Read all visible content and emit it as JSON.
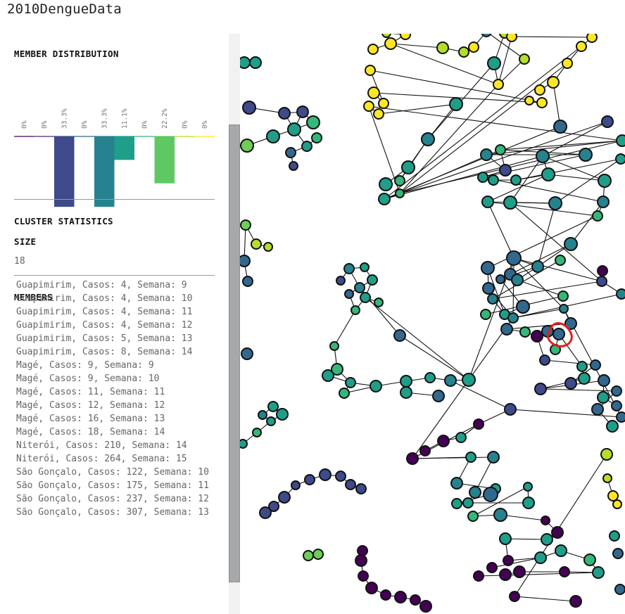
{
  "app": {
    "title": "2010DengueData"
  },
  "sidebar": {
    "distribution": {
      "title": "MEMBER DISTRIBUTION",
      "labels": [
        "0%",
        "0%",
        "33.3%",
        "0%",
        "33.3%",
        "11.1%",
        "0%",
        "22.2%",
        "0%",
        "0%"
      ],
      "values": [
        0,
        0,
        33.3,
        0,
        33.3,
        11.1,
        0,
        22.2,
        0,
        0
      ],
      "colors": [
        "#440154",
        "#482878",
        "#3e4a89",
        "#31688e",
        "#26828e",
        "#1f9e89",
        "#35b779",
        "#5ec962",
        "#b5de2b",
        "#fde725"
      ]
    },
    "stats": {
      "title": "CLUSTER STATISTICS",
      "size_label": "SIZE",
      "size_value": "18"
    },
    "members": {
      "title": "MEMBERS",
      "items": [
        "Guapimirim, Casos: 4, Semana: 9",
        "Guapimirim, Casos: 4, Semana: 10",
        "Guapimirim, Casos: 4, Semana: 11",
        "Guapimirim, Casos: 4, Semana: 12",
        "Guapimirim, Casos: 5, Semana: 13",
        "Guapimirim, Casos: 8, Semana: 14",
        "Magé, Casos: 9, Semana: 9",
        "Magé, Casos: 9, Semana: 10",
        "Magé, Casos: 11, Semana: 11",
        "Magé, Casos: 12, Semana: 12",
        "Magé, Casos: 16, Semana: 13",
        "Magé, Casos: 18, Semana: 14",
        "Niterói, Casos: 210, Semana: 14",
        "Niterói, Casos: 264, Semana: 15",
        "São Gonçalo, Casos: 122, Semana: 10",
        "São Gonçalo, Casos: 175, Semana: 11",
        "São Gonçalo, Casos: 237, Semana: 12",
        "São Gonçalo, Casos: 307, Semana: 13"
      ]
    }
  },
  "graph": {
    "selection_color": "#e0201b",
    "palette": {
      "a": "#440154",
      "b": "#3e4a89",
      "c": "#31688e",
      "d": "#26828e",
      "e": "#1f9e89",
      "f": "#35b779",
      "g": "#6ece58",
      "h": "#b5de2b",
      "i": "#fde725"
    }
  }
}
